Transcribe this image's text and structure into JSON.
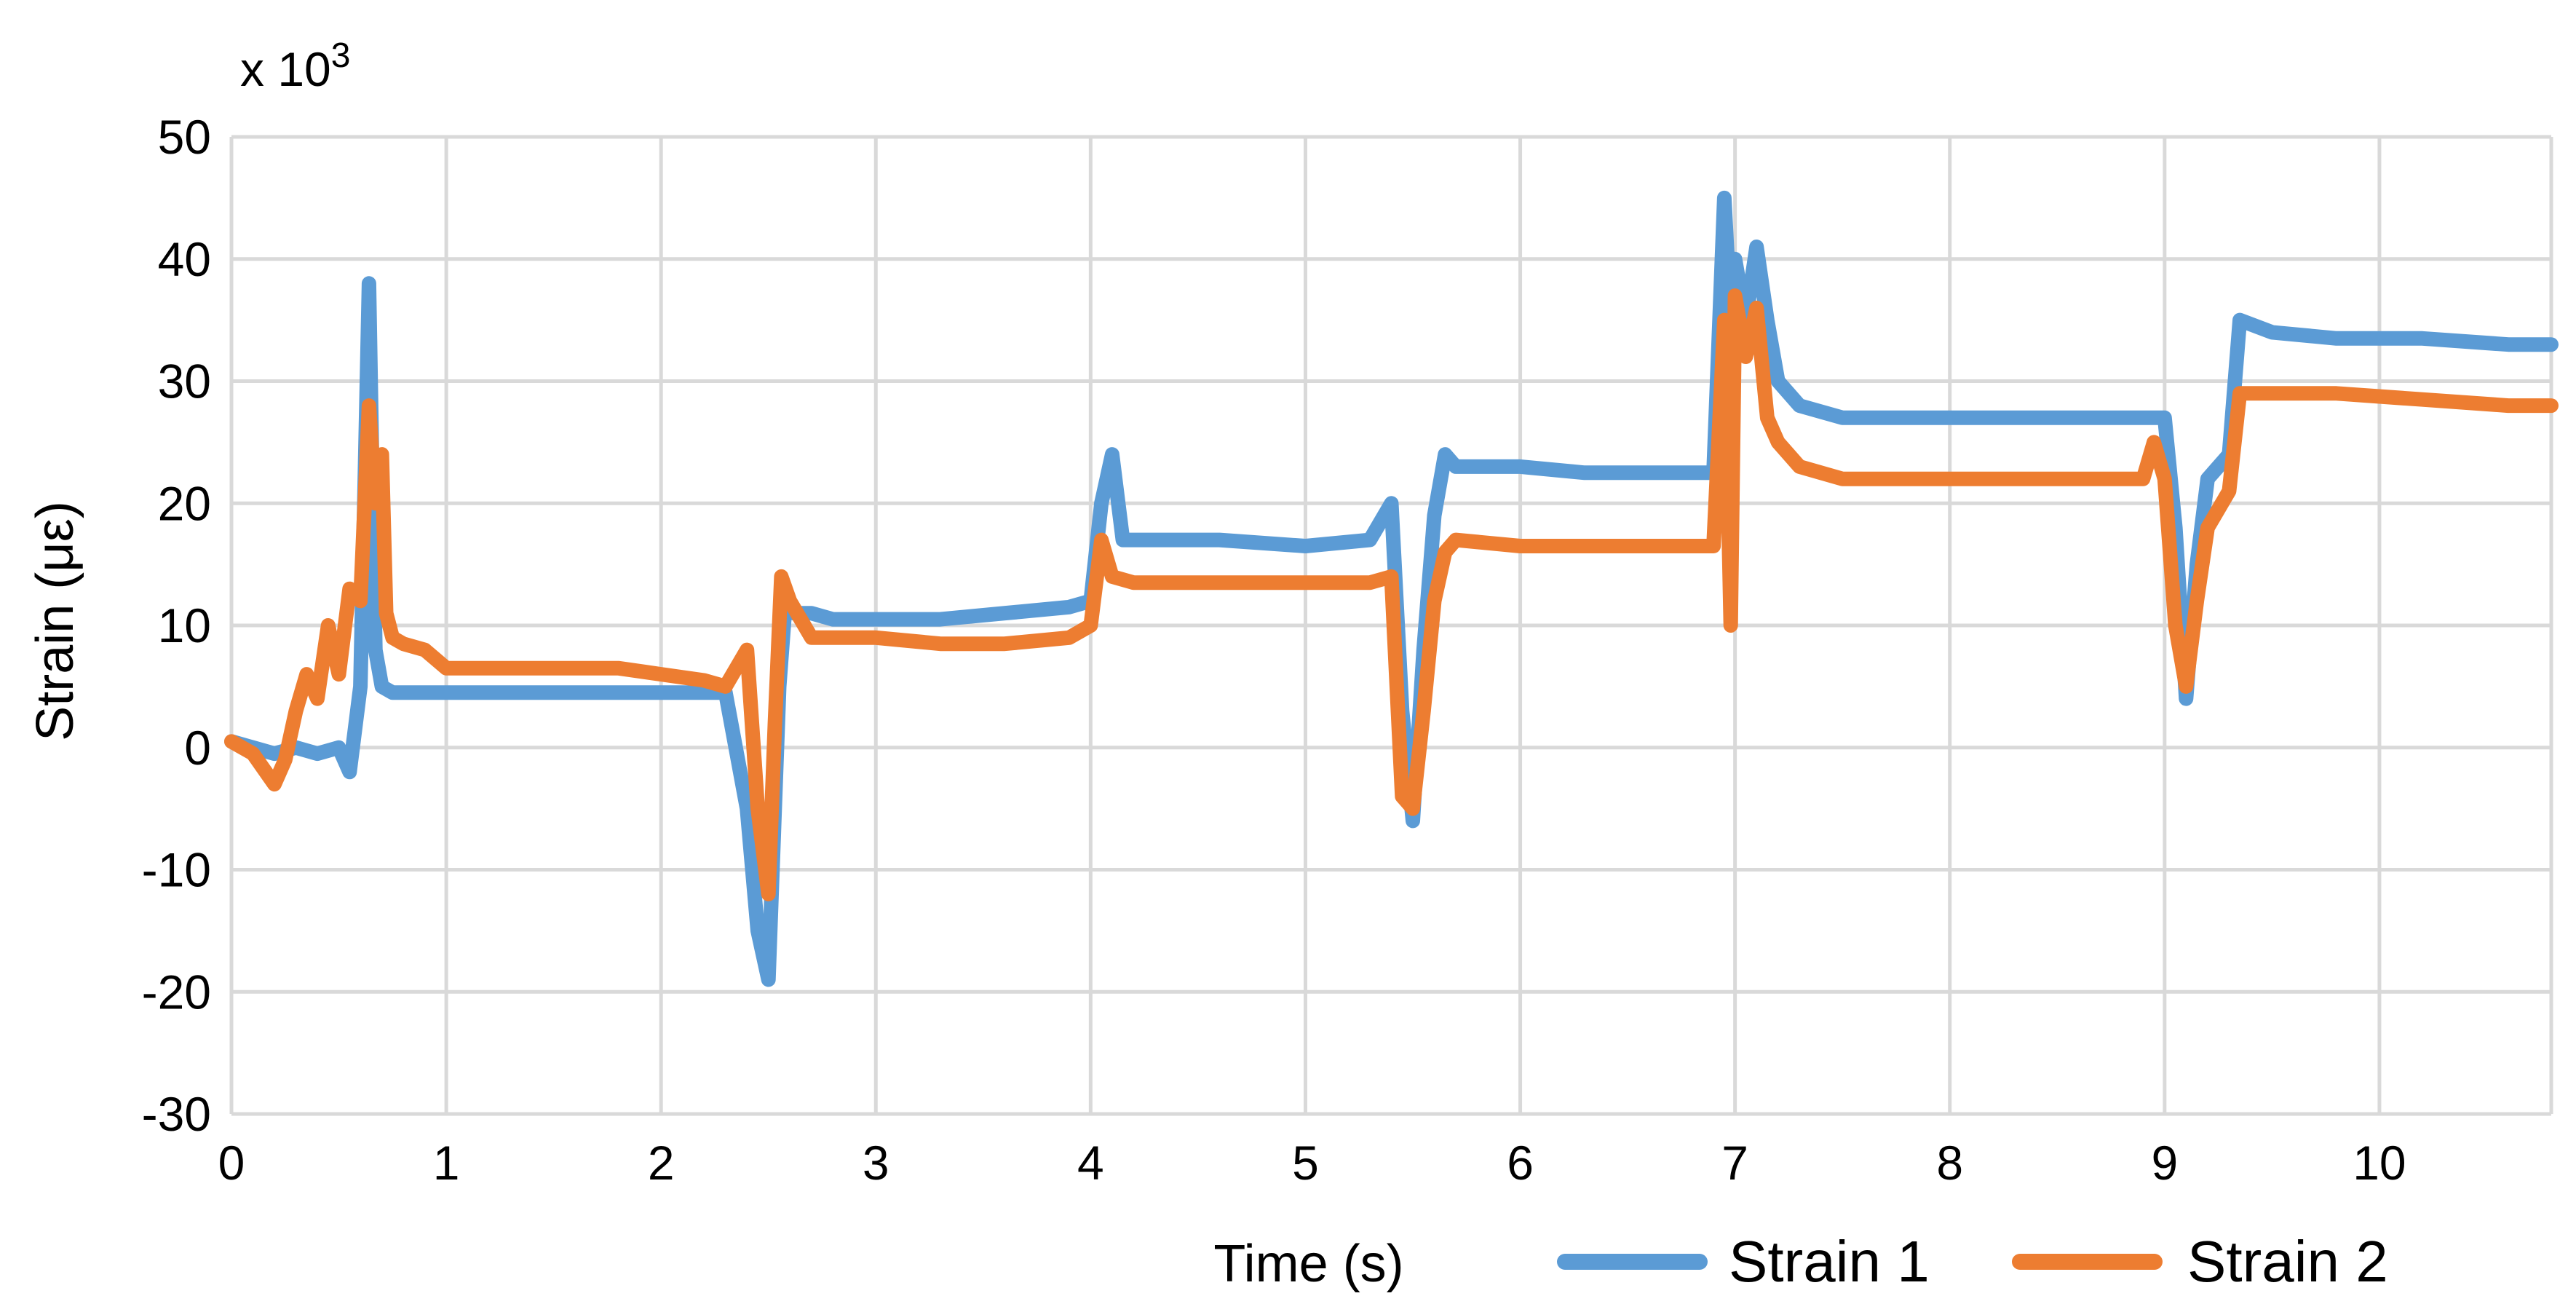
{
  "chart_data": {
    "type": "line",
    "multiplier_label": "x 10",
    "multiplier_exponent": "3",
    "xlabel": "Time (s)",
    "ylabel": "Strain (με)",
    "xlim": [
      0,
      10.8
    ],
    "ylim": [
      -30,
      50
    ],
    "x_ticks": [
      "0",
      "1",
      "2",
      "3",
      "4",
      "5",
      "6",
      "7",
      "8",
      "9",
      "10"
    ],
    "y_ticks": [
      "50",
      "40",
      "30",
      "20",
      "10",
      "0",
      "-10",
      "-20",
      "-30"
    ],
    "grid": true,
    "legend_position": "bottom-right",
    "series": [
      {
        "name": "Strain 1",
        "color": "#5b9bd5",
        "x": [
          0,
          0.1,
          0.2,
          0.3,
          0.4,
          0.5,
          0.55,
          0.6,
          0.64,
          0.67,
          0.7,
          0.75,
          0.8,
          0.9,
          1.0,
          1.2,
          1.4,
          1.6,
          1.8,
          2.0,
          2.2,
          2.3,
          2.4,
          2.45,
          2.5,
          2.55,
          2.58,
          2.62,
          2.7,
          2.8,
          3.0,
          3.3,
          3.6,
          3.9,
          4.0,
          4.05,
          4.1,
          4.15,
          4.3,
          4.6,
          5.0,
          5.3,
          5.4,
          5.45,
          5.5,
          5.55,
          5.6,
          5.65,
          5.7,
          6.0,
          6.3,
          6.6,
          6.9,
          6.95,
          6.98,
          7.0,
          7.05,
          7.1,
          7.15,
          7.2,
          7.3,
          7.5,
          7.8,
          8.2,
          8.6,
          8.95,
          9.0,
          9.05,
          9.1,
          9.15,
          9.2,
          9.3,
          9.35,
          9.5,
          9.8,
          10.2,
          10.6,
          10.8
        ],
        "y": [
          0.5,
          0,
          -0.5,
          0,
          -0.5,
          0,
          -2,
          5,
          38,
          8,
          5,
          4.5,
          4.5,
          4.5,
          4.5,
          4.5,
          4.5,
          4.5,
          4.5,
          4.5,
          4.5,
          4.5,
          -5,
          -15,
          -19,
          5,
          12,
          11,
          11,
          10.5,
          10.5,
          10.5,
          11,
          11.5,
          12,
          20,
          24,
          17,
          17,
          17,
          16.5,
          17,
          20,
          3,
          -6,
          8,
          19,
          24,
          23,
          23,
          22.5,
          22.5,
          22.5,
          45,
          35,
          40,
          35,
          41,
          35,
          30,
          28,
          27,
          27,
          27,
          27,
          27,
          27,
          18,
          4,
          15,
          22,
          24,
          35,
          34,
          33.5,
          33.5,
          33,
          33
        ]
      },
      {
        "name": "Strain 2",
        "color": "#ed7d31",
        "x": [
          0,
          0.1,
          0.2,
          0.25,
          0.3,
          0.35,
          0.4,
          0.45,
          0.5,
          0.55,
          0.6,
          0.64,
          0.67,
          0.7,
          0.72,
          0.75,
          0.8,
          0.9,
          1.0,
          1.2,
          1.4,
          1.6,
          1.8,
          2.0,
          2.2,
          2.3,
          2.4,
          2.45,
          2.5,
          2.53,
          2.56,
          2.6,
          2.7,
          2.8,
          3.0,
          3.3,
          3.6,
          3.9,
          4.0,
          4.05,
          4.1,
          4.2,
          4.5,
          4.8,
          5.0,
          5.3,
          5.4,
          5.45,
          5.5,
          5.55,
          5.6,
          5.65,
          5.7,
          6.0,
          6.3,
          6.6,
          6.9,
          6.95,
          6.98,
          7.0,
          7.05,
          7.1,
          7.15,
          7.2,
          7.3,
          7.5,
          7.8,
          8.2,
          8.6,
          8.9,
          8.95,
          9.0,
          9.05,
          9.1,
          9.15,
          9.2,
          9.3,
          9.35,
          9.5,
          9.8,
          10.2,
          10.6,
          10.8
        ],
        "y": [
          0.5,
          -0.5,
          -3,
          -1,
          3,
          6,
          4,
          10,
          6,
          13,
          12,
          28,
          20,
          24,
          11,
          9,
          8.5,
          8,
          6.5,
          6.5,
          6.5,
          6.5,
          6.5,
          6,
          5.5,
          5,
          8,
          -5,
          -12,
          2,
          14,
          12,
          9,
          9,
          9,
          8.5,
          8.5,
          9,
          10,
          17,
          14,
          13.5,
          13.5,
          13.5,
          13.5,
          13.5,
          14,
          -4,
          -5,
          3,
          12,
          16,
          17,
          16.5,
          16.5,
          16.5,
          16.5,
          35,
          10,
          37,
          32,
          36,
          27,
          25,
          23,
          22,
          22,
          22,
          22,
          22,
          25,
          22,
          10,
          5,
          12,
          18,
          21,
          29,
          29,
          29,
          28.5,
          28,
          28
        ]
      }
    ]
  }
}
